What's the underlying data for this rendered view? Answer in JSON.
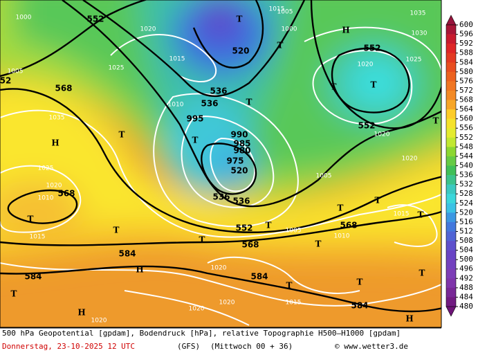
{
  "map": {
    "labels": [
      "552",
      "520",
      "536",
      "536",
      "568",
      "552",
      "552",
      "568",
      "520",
      "536",
      "536",
      "552",
      "568",
      "568",
      "584",
      "584",
      "584",
      "584",
      "52",
      "T",
      "T",
      "H",
      "T",
      "T",
      "T",
      "T",
      "T",
      "H",
      "T",
      "T",
      "H",
      "T",
      "T",
      "T",
      "T",
      "T",
      "T",
      "T",
      "T",
      "T",
      "T",
      "H",
      "H",
      "T",
      "1000",
      "1005",
      "1025",
      "1020",
      "1015",
      "1010",
      "1035",
      "1020",
      "1020",
      "1015",
      "1000",
      "1005",
      "1030",
      "1035",
      "1025",
      "995",
      "990",
      "985",
      "980",
      "975",
      "1010",
      "1005",
      "1005",
      "1010",
      "1015",
      "1020",
      "1020",
      "1020",
      "1020",
      "1020",
      "1015",
      "1020",
      "1025",
      "1015"
    ]
  },
  "colorbar": {
    "labels": [
      600,
      596,
      592,
      588,
      584,
      580,
      576,
      572,
      568,
      564,
      560,
      556,
      552,
      548,
      544,
      540,
      536,
      532,
      528,
      524,
      520,
      516,
      512,
      508,
      504,
      500,
      496,
      492,
      488,
      484,
      480
    ]
  },
  "footer": {
    "line1": "500 hPa Geopotential [gpdam], Bodendruck [hPa], relative Topographie H500–H1000 [gpdam]",
    "date": "Donnerstag, 23-10-2025  12 UTC",
    "model": "(GFS)",
    "run": "(Mittwoch 00 + 36)",
    "credit": "© www.wetter3.de"
  }
}
